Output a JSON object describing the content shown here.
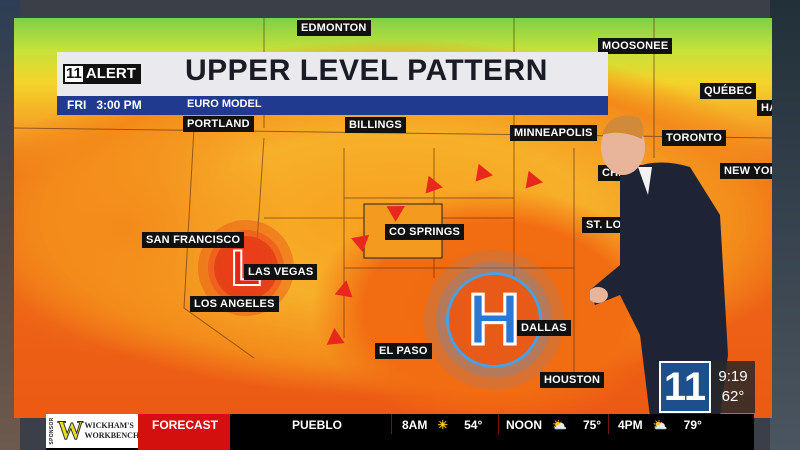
{
  "header": {
    "alert_number": "11",
    "alert_word": "ALERT",
    "title": "UPPER LEVEL PATTERN",
    "day_time": "FRI   3:00 PM",
    "model": "EURO MODEL"
  },
  "map": {
    "cities": [
      "EDMONTON",
      "MOOSONEE",
      "QUÉBEC",
      "HALIFAX",
      "PORTLAND",
      "BILLINGS",
      "MINNEAPOLIS",
      "TORONTO",
      "CHICAGO",
      "NEW YORK",
      "ST. LOUIS",
      "SAN FRANCISCO",
      "CO SPRINGS",
      "LAS VEGAS",
      "LOS ANGELES",
      "DALLAS",
      "EL PASO",
      "HOUSTON"
    ],
    "low_symbol": "L",
    "high_symbol": "H",
    "colors": {
      "low": "#e8241a",
      "high": "#2a78d6",
      "arrows": "#e8281c"
    }
  },
  "ticker": {
    "sponsor": "WICKHAM'S WORKBENCH",
    "sponsor_tag": "SPONSOR",
    "forecast_label": "FORECAST",
    "location": "PUEBLO",
    "periods": [
      {
        "time": "8AM",
        "icon": "sun-icon",
        "temp": "54°"
      },
      {
        "time": "NOON",
        "icon": "partly-cloudy-icon",
        "temp": "75°"
      },
      {
        "time": "4PM",
        "icon": "partly-cloudy-icon",
        "temp": "79°"
      }
    ]
  },
  "station_bug": {
    "logo": "11",
    "time": "9:19",
    "temp": "62°"
  }
}
